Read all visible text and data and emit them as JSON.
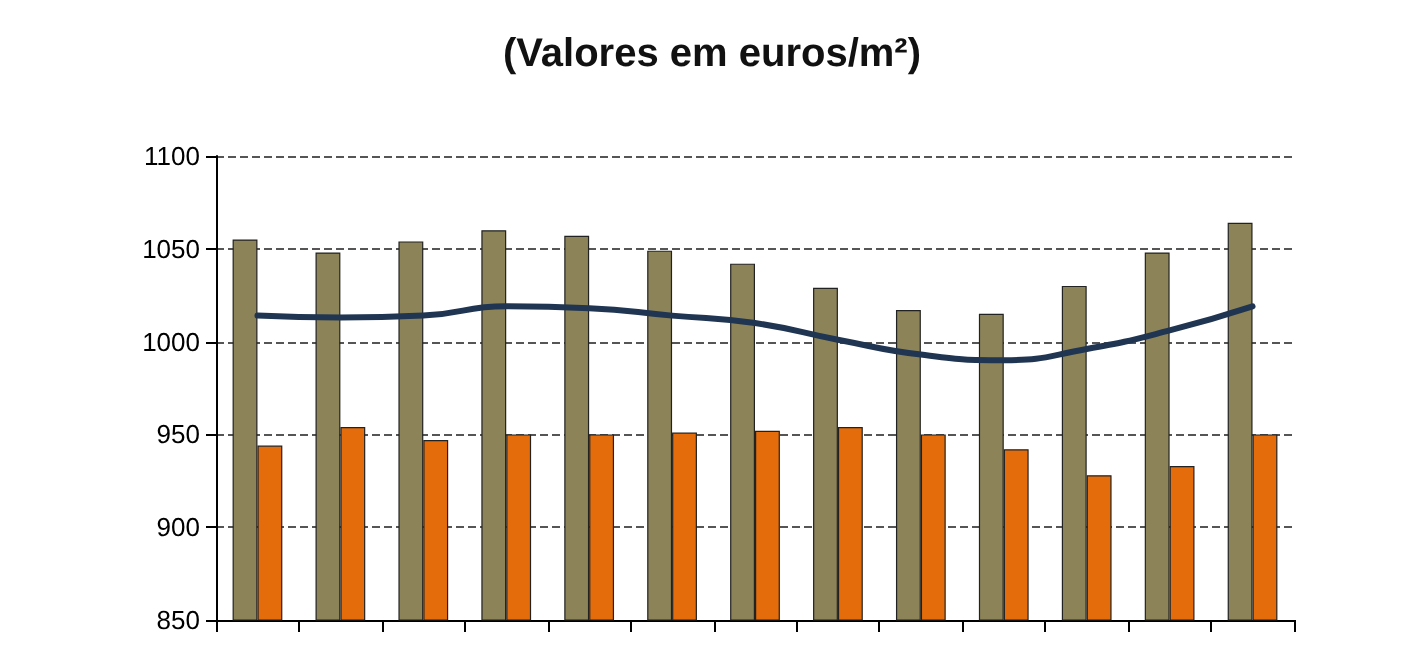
{
  "chart_data": {
    "type": "bar",
    "title": "(Valores em euros/m²)",
    "categories": [
      null,
      null,
      null,
      null,
      null,
      null,
      null,
      null,
      null,
      null,
      null,
      null,
      null
    ],
    "series": [
      {
        "color": "#8c8358",
        "values": [
          1055,
          1048,
          1054,
          1060,
          1057,
          1049,
          1042,
          1029,
          1017,
          1015,
          1030,
          1048,
          1064
        ]
      },
      {
        "color": "#e46c0a",
        "values": [
          944,
          954,
          947,
          950,
          950,
          951,
          952,
          954,
          950,
          942,
          928,
          933,
          950
        ]
      },
      {
        "type": "line",
        "color": "#1f3552",
        "values": [
          1014,
          1013,
          1014,
          1019,
          1018,
          1014,
          1010,
          1001,
          993,
          990,
          996,
          1006,
          1019
        ]
      }
    ],
    "ylim": [
      850,
      1100
    ],
    "yticks": [
      850,
      900,
      950,
      1000,
      1050,
      1100
    ],
    "grid": "y",
    "marker": "none",
    "line_style": "solid"
  }
}
